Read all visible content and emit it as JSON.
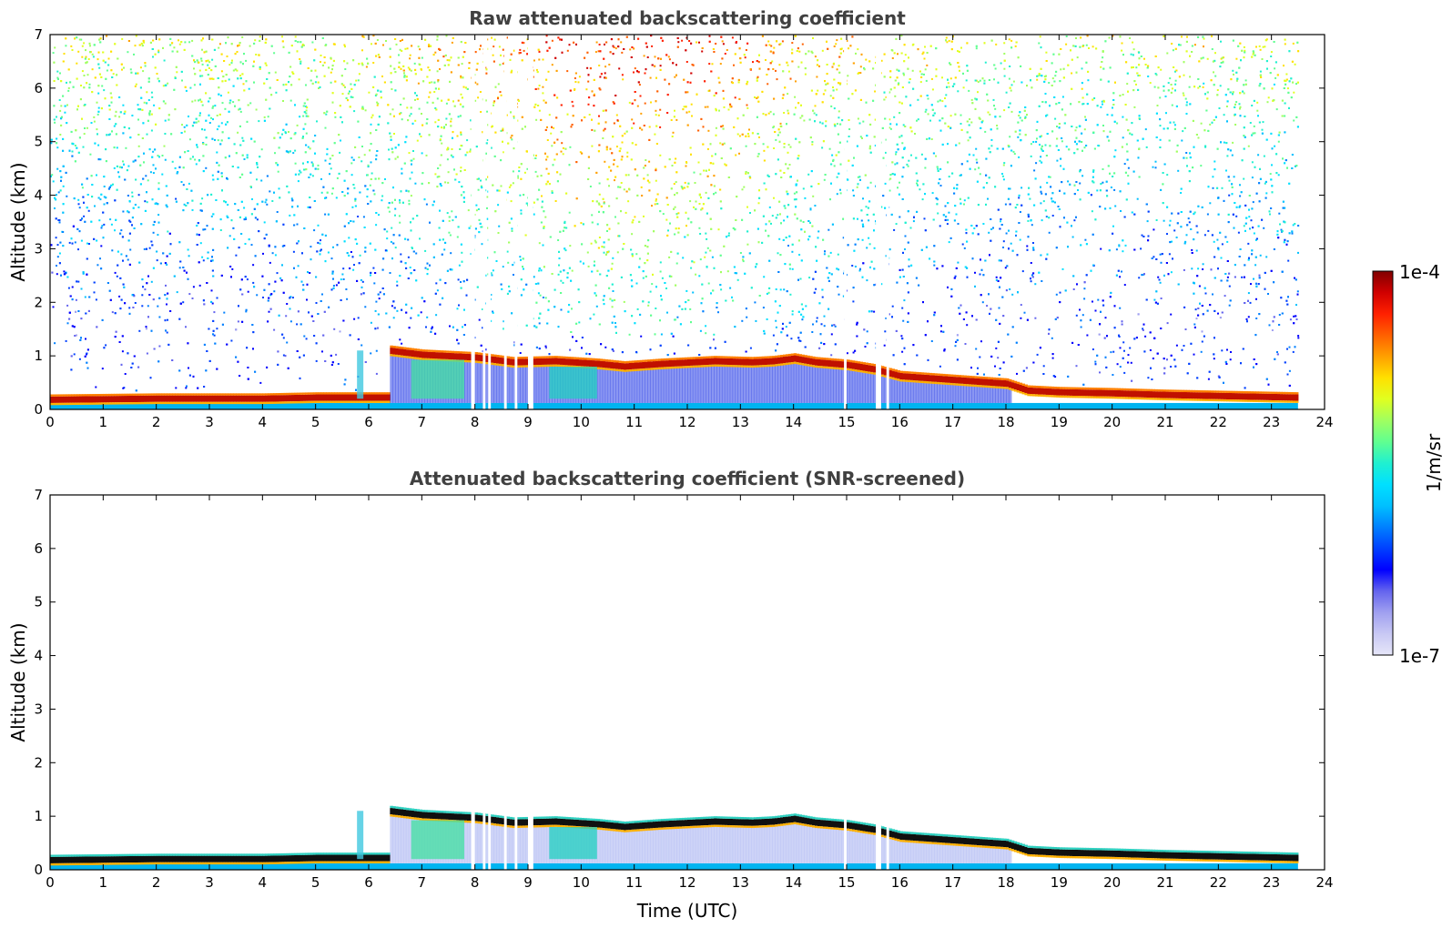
{
  "chart_data": [
    {
      "type": "heatmap",
      "title": "Raw attenuated backscattering coefficient",
      "xlabel": "",
      "ylabel": "Altitude (km)",
      "xlim": [
        0,
        24
      ],
      "ylim": [
        0,
        7
      ],
      "xticks": [
        "0",
        "1",
        "2",
        "3",
        "4",
        "5",
        "6",
        "7",
        "8",
        "9",
        "10",
        "11",
        "12",
        "13",
        "14",
        "15",
        "16",
        "17",
        "18",
        "19",
        "20",
        "21",
        "22",
        "23",
        "24"
      ],
      "yticks": [
        "0",
        "1",
        "2",
        "3",
        "4",
        "5",
        "6",
        "7"
      ],
      "data_end_hour": 23.5,
      "colorscale": "jet",
      "features": {
        "cloud_layer": {
          "description_units": "hour to altitude km",
          "path": [
            [
              0,
              0.18
            ],
            [
              2,
              0.2
            ],
            [
              4,
              0.2
            ],
            [
              5,
              0.22
            ],
            [
              6,
              0.22
            ],
            [
              6.35,
              0.22
            ],
            [
              6.35,
              1.1
            ],
            [
              7,
              1.02
            ],
            [
              8,
              0.97
            ],
            [
              8.7,
              0.88
            ],
            [
              9.5,
              0.9
            ],
            [
              10.3,
              0.85
            ],
            [
              10.8,
              0.8
            ],
            [
              11.5,
              0.85
            ],
            [
              12.5,
              0.9
            ],
            [
              13.2,
              0.88
            ],
            [
              13.6,
              0.9
            ],
            [
              14,
              0.95
            ],
            [
              14.4,
              0.88
            ],
            [
              15,
              0.83
            ],
            [
              15.5,
              0.75
            ],
            [
              16,
              0.62
            ],
            [
              17,
              0.55
            ],
            [
              18,
              0.48
            ],
            [
              18.4,
              0.35
            ],
            [
              19,
              0.32
            ],
            [
              20,
              0.3
            ],
            [
              21,
              0.27
            ],
            [
              22,
              0.25
            ],
            [
              23.5,
              0.22
            ]
          ]
        },
        "surface_layer_top_km": 0.12,
        "data_gaps_hours": [
          [
            7.93,
            8.0
          ],
          [
            8.15,
            8.2
          ],
          [
            8.25,
            8.3
          ],
          [
            8.55,
            8.6
          ],
          [
            8.75,
            8.8
          ],
          [
            9.0,
            9.1
          ],
          [
            14.95,
            15.0
          ],
          [
            15.55,
            15.65
          ],
          [
            15.75,
            15.8
          ]
        ],
        "background_noise": "increasing with altitude, strongest near 9-13 h above 4 km"
      }
    },
    {
      "type": "heatmap",
      "title": "Attenuated backscattering coefficient (SNR-screened)",
      "xlabel": "Time (UTC)",
      "ylabel": "Altitude (km)",
      "xlim": [
        0,
        24
      ],
      "ylim": [
        0,
        7
      ],
      "xticks": [
        "0",
        "1",
        "2",
        "3",
        "4",
        "5",
        "6",
        "7",
        "8",
        "9",
        "10",
        "11",
        "12",
        "13",
        "14",
        "15",
        "16",
        "17",
        "18",
        "19",
        "20",
        "21",
        "22",
        "23",
        "24"
      ],
      "yticks": [
        "0",
        "1",
        "2",
        "3",
        "4",
        "5",
        "6",
        "7"
      ],
      "data_end_hour": 23.5,
      "colorscale": "jet",
      "features": {
        "cloud_layer_same_as_panel_1": true,
        "cloud_top_highlight": "black",
        "noise_removed_above_km": 1.3
      }
    }
  ],
  "colorbar": {
    "max_label": "1e-4",
    "min_label": "1e-7",
    "unit_label": "1/m/sr",
    "colors": [
      "#e6e6f8",
      "#c8c8f4",
      "#a0a0f0",
      "#6464ee",
      "#0000ff",
      "#0040ff",
      "#0080ff",
      "#00c0ff",
      "#00e0ff",
      "#20f0d0",
      "#60ff90",
      "#a0ff60",
      "#e0ff20",
      "#ffe000",
      "#ffa000",
      "#ff6000",
      "#ff2000",
      "#d00000",
      "#800000"
    ]
  }
}
